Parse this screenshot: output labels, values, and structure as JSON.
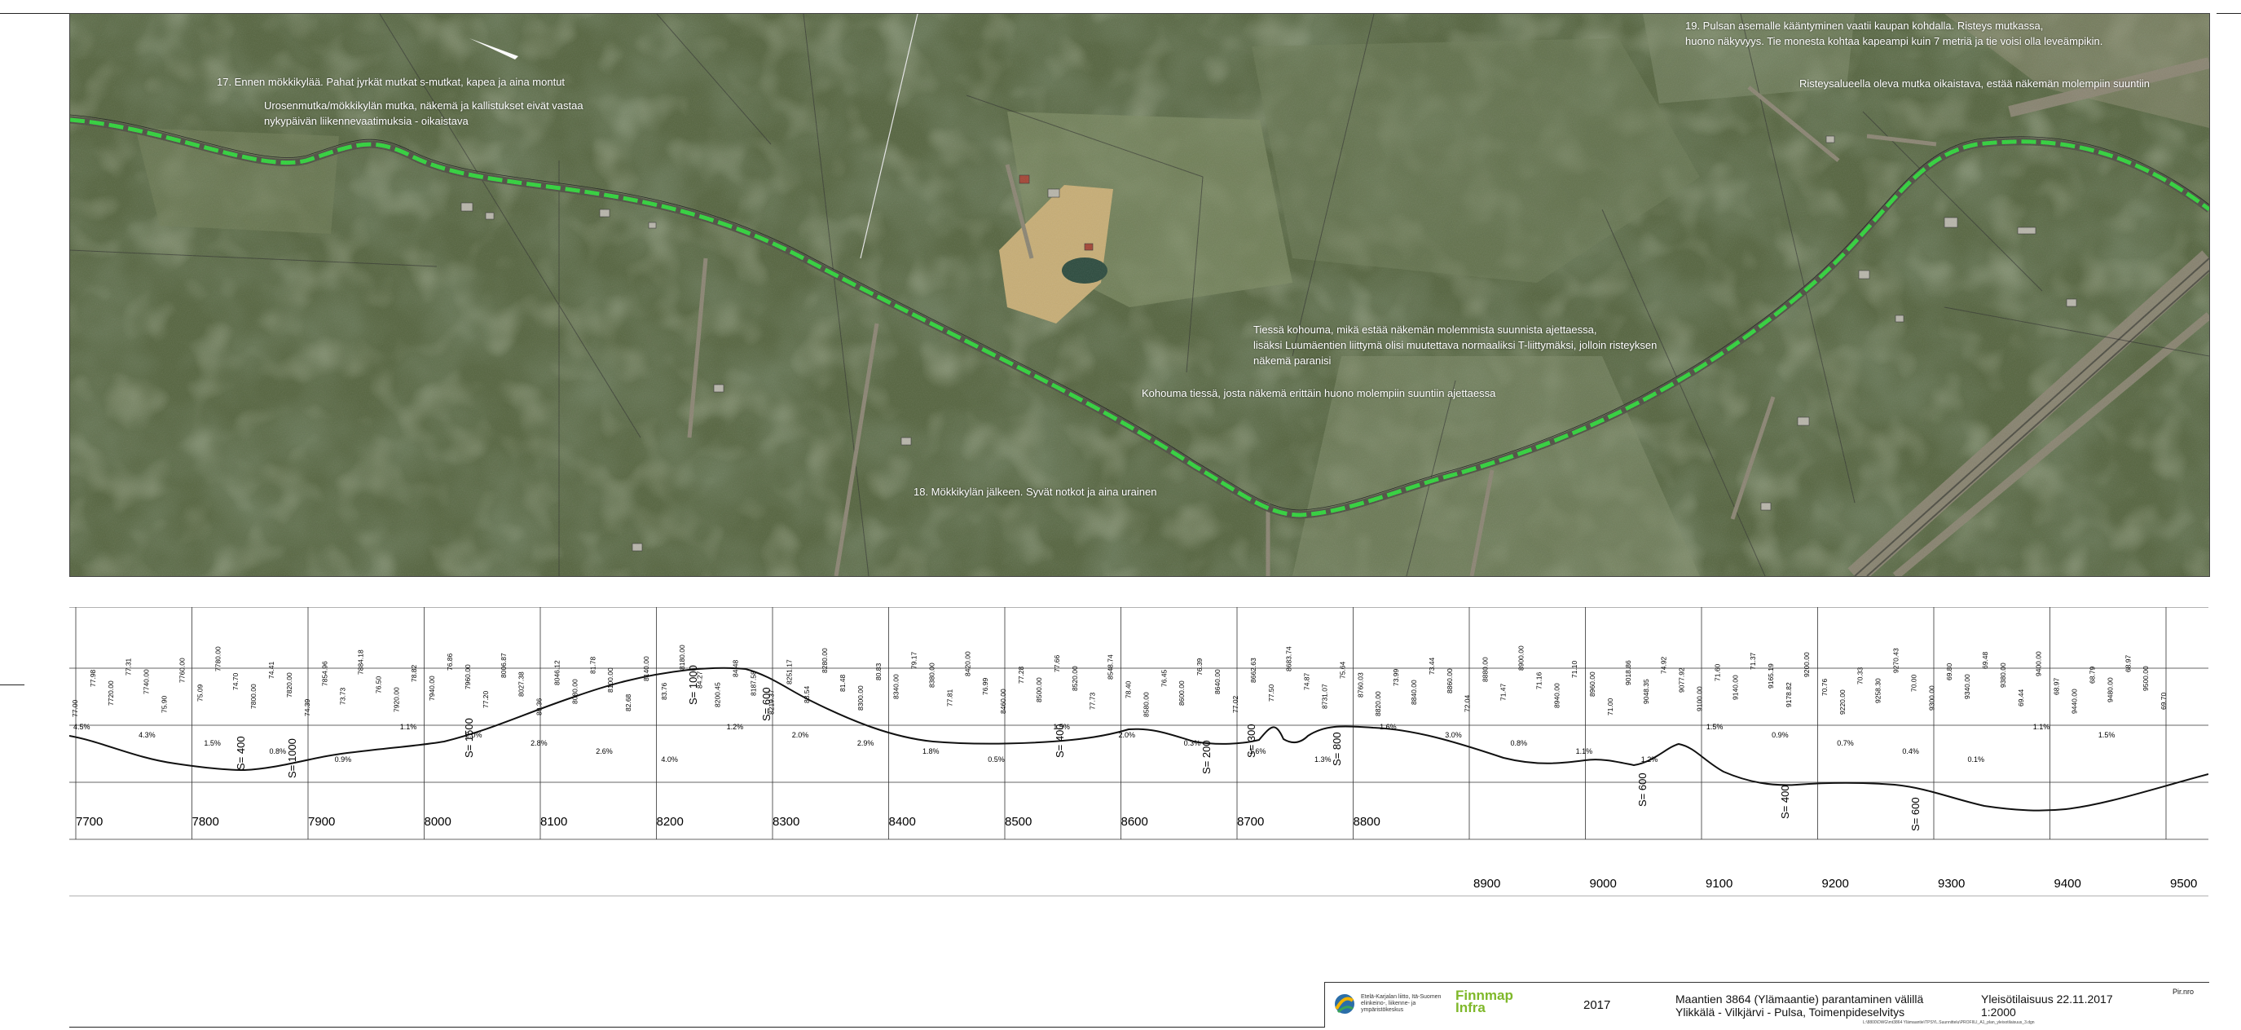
{
  "aerial": {
    "annotations": [
      {
        "id": "a17",
        "lines": [
          "17. Ennen mökkikylää. Pahat jyrkät mutkat s-mutkat, kapea ja aina montut"
        ]
      },
      {
        "id": "a17b",
        "lines": [
          "Urosenmutka/mökkikylän mutka, näkemä ja kallistukset eivät vastaa",
          "nykypäivän liikennevaatimuksia - oikaistava"
        ]
      },
      {
        "id": "a19",
        "lines": [
          "19. Pulsan asemalle kääntyminen vaatii kaupan kohdalla. Risteys mutkassa,",
          "huono näkyvyys. Tie monesta kohtaa kapeampi kuin 7 metriä ja tie voisi olla leveämpikin."
        ]
      },
      {
        "id": "aRist",
        "lines": [
          "Risteysalueella oleva mutka oikaistava, estää näkemän molempiin suuntiin"
        ]
      },
      {
        "id": "aTiess",
        "lines": [
          "Tiessä kohouma, mikä estää näkemän molemmista suunnista ajettaessa,",
          "lisäksi Luumäentien liittymä olisi muutettava normaaliksi T-liittymäksi, jolloin risteyksen",
          "näkemä paranisi"
        ]
      },
      {
        "id": "aKoh",
        "lines": [
          "Kohouma tiessä, josta näkemä erittäin huono molempiin suuntiin ajettaessa"
        ]
      },
      {
        "id": "a18",
        "lines": [
          "18. Mökkikylän jälkeen. Syvät notkot ja aina urainen"
        ]
      }
    ],
    "colors": {
      "route": "#2fd23a",
      "road": "#5b5b4c",
      "forest_dark": "#2c3a24",
      "forest_mid": "#4e5c3d",
      "field": "#c9b07a"
    }
  },
  "profile": {
    "stations_row1": [
      "7700",
      "7800",
      "7900",
      "8000",
      "8100",
      "8200",
      "8300",
      "8400",
      "8500",
      "8600",
      "8700",
      "8800"
    ],
    "stations_row2": [
      "8900",
      "9000",
      "9100",
      "9200",
      "9300",
      "9400",
      "9500"
    ],
    "curves": [
      "S= 400",
      "S= 1000",
      "S= 1500",
      "S= 1000",
      "S= 600",
      "S= 400",
      "S= 200",
      "S= 300",
      "S= 800",
      "S= 600",
      "S= 400",
      "S= 600"
    ],
    "grades": [
      "4.5%",
      "4.3%",
      "1.5%",
      "0.8%",
      "0.9%",
      "1.1%",
      "2.0%",
      "2.8%",
      "2.6%",
      "4.0%",
      "1.2%",
      "2.0%",
      "2.9%",
      "1.8%",
      "0.5%",
      "1.5%",
      "2.0%",
      "0.3%",
      "1.6%",
      "1.3%",
      "1.6%",
      "3.0%",
      "0.8%",
      "1.1%",
      "1.2%",
      "1.5%",
      "0.9%",
      "0.7%",
      "0.4%",
      "0.1%",
      "1.1%",
      "1.5%"
    ],
    "elevation_labels": [
      "77.00",
      "77.98",
      "7720.00",
      "77.31",
      "7740.00",
      "75.90",
      "7760.00",
      "75.09",
      "7780.00",
      "74.70",
      "7800.00",
      "74.41",
      "7820.00",
      "74.39",
      "7854.96",
      "73.73",
      "7884.18",
      "76.50",
      "7920.00",
      "78.82",
      "7940.00",
      "76.86",
      "7960.00",
      "77.20",
      "8006.87",
      "8027.38",
      "80.36",
      "8046.12",
      "8080.00",
      "81.78",
      "8100.00",
      "82.68",
      "8140.00",
      "83.76",
      "8180.00",
      "84.27",
      "8200.45",
      "84.48",
      "8187.58",
      "8219.37",
      "8251.17",
      "83.54",
      "8280.00",
      "81.48",
      "8300.00",
      "80.83",
      "8340.00",
      "79.17",
      "8380.00",
      "77.81",
      "8420.00",
      "76.99",
      "8460.00",
      "77.28",
      "8500.00",
      "77.66",
      "8520.00",
      "77.73",
      "8548.74",
      "78.40",
      "8580.00",
      "76.45",
      "8600.00",
      "76.39",
      "8640.00",
      "77.02",
      "8662.63",
      "77.50",
      "8683.74",
      "74.87",
      "8731.07",
      "75.64",
      "8760.03",
      "8820.00",
      "73.99",
      "8840.00",
      "73.44",
      "8860.00",
      "72.04",
      "8880.00",
      "71.47",
      "8900.00",
      "71.16",
      "8940.00",
      "71.10",
      "8960.00",
      "71.00",
      "9018.86",
      "9048.35",
      "74.92",
      "9077.92",
      "9100.00",
      "71.60",
      "9140.00",
      "71.37",
      "9165.19",
      "9178.82",
      "9200.00",
      "70.76",
      "9220.00",
      "70.33",
      "9258.30",
      "9270.43",
      "70.00",
      "9300.00",
      "69.80",
      "9340.00",
      "69.48",
      "9380.00",
      "69.44",
      "9400.00",
      "68.97",
      "9440.00",
      "68.79",
      "9480.00",
      "68.97",
      "9500.00",
      "69.70"
    ]
  },
  "titleblock": {
    "org1": "Etelä-Karjalan liitto, Itä-Suomen elinkeino-, liikenne- ja ympäristökeskus",
    "org2_line1": "Finnmap",
    "org2_line2": "Infra",
    "year": "2017",
    "title_line1": "Maantien 3864 (Ylämaantie) parantaminen välillä",
    "title_line2": "Ylikkälä - Vilkjärvi - Pulsa, Toimenpideselvitys",
    "doc_line1": "Yleisötilaisuus 22.11.2017",
    "doc_line2": "1:2000",
    "pln": "Pir.nro",
    "path_text": "L:\\8800\\DWG\\mt3864 Ylämaantie\\TPSYL.Suunnittelu\\PROFIILI_A1_plan_yleisotilaisuus_3.dgn"
  }
}
